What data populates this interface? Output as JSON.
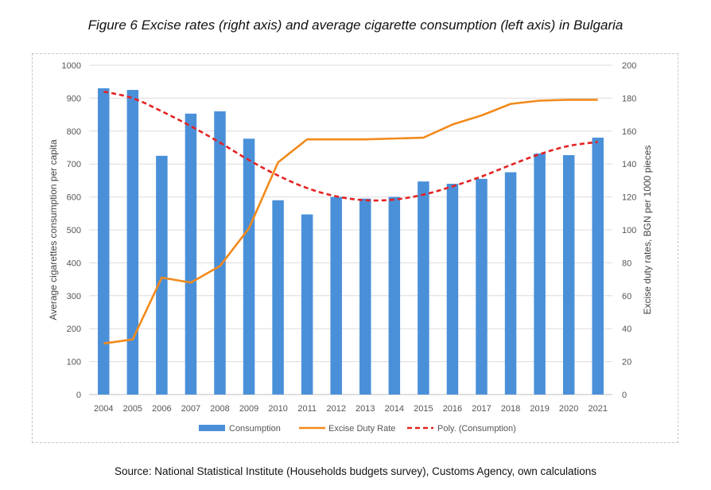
{
  "figure": {
    "title": "Figure 6 Excise rates (right axis) and average cigarette consumption (left axis) in Bulgaria",
    "source": "Source: National Statistical Institute (Households budgets survey), Customs Agency, own calculations"
  },
  "chart_data": {
    "type": "bar",
    "title": "Figure 6 Excise rates (right axis) and average cigarette consumption (left axis) in Bulgaria",
    "categories": [
      "2004",
      "2005",
      "2006",
      "2007",
      "2008",
      "2009",
      "2010",
      "2011",
      "2012",
      "2013",
      "2014",
      "2015",
      "2016",
      "2017",
      "2018",
      "2019",
      "2020",
      "2021"
    ],
    "ylabel": "Average cigarettes consumption per capita",
    "y2label": "Excise duty rates, BGN per 1000 pieces",
    "ylim": [
      0,
      1000
    ],
    "y2lim": [
      0,
      200
    ],
    "yticks": [
      "0",
      "100",
      "200",
      "300",
      "400",
      "500",
      "600",
      "700",
      "800",
      "900",
      "1000"
    ],
    "y2ticks": [
      "0",
      "20",
      "40",
      "60",
      "80",
      "100",
      "120",
      "140",
      "160",
      "180",
      "200"
    ],
    "grid": true,
    "legend_position": "bottom",
    "series": [
      {
        "name": "Consumption",
        "type": "bar",
        "axis": "left",
        "color": "#4a90d9",
        "values": [
          930,
          925,
          725,
          853,
          860,
          777,
          590,
          547,
          600,
          595,
          600,
          647,
          640,
          655,
          675,
          732,
          727,
          780
        ]
      },
      {
        "name": "Excise Duty Rate",
        "type": "line",
        "axis": "right",
        "color": "#f28a1b",
        "values": [
          31,
          33.5,
          71,
          68,
          78,
          101,
          141,
          155,
          155,
          155,
          155.5,
          156,
          164,
          169.5,
          176.5,
          178.5,
          179,
          179
        ]
      },
      {
        "name": "Poly. (Consumption)",
        "type": "line",
        "axis": "left",
        "dashed": true,
        "color": "#e52222",
        "values": [
          920,
          900,
          860,
          815,
          765,
          712,
          665,
          627,
          602,
          590,
          592,
          607,
          632,
          662,
          697,
          730,
          755,
          767
        ]
      }
    ]
  }
}
